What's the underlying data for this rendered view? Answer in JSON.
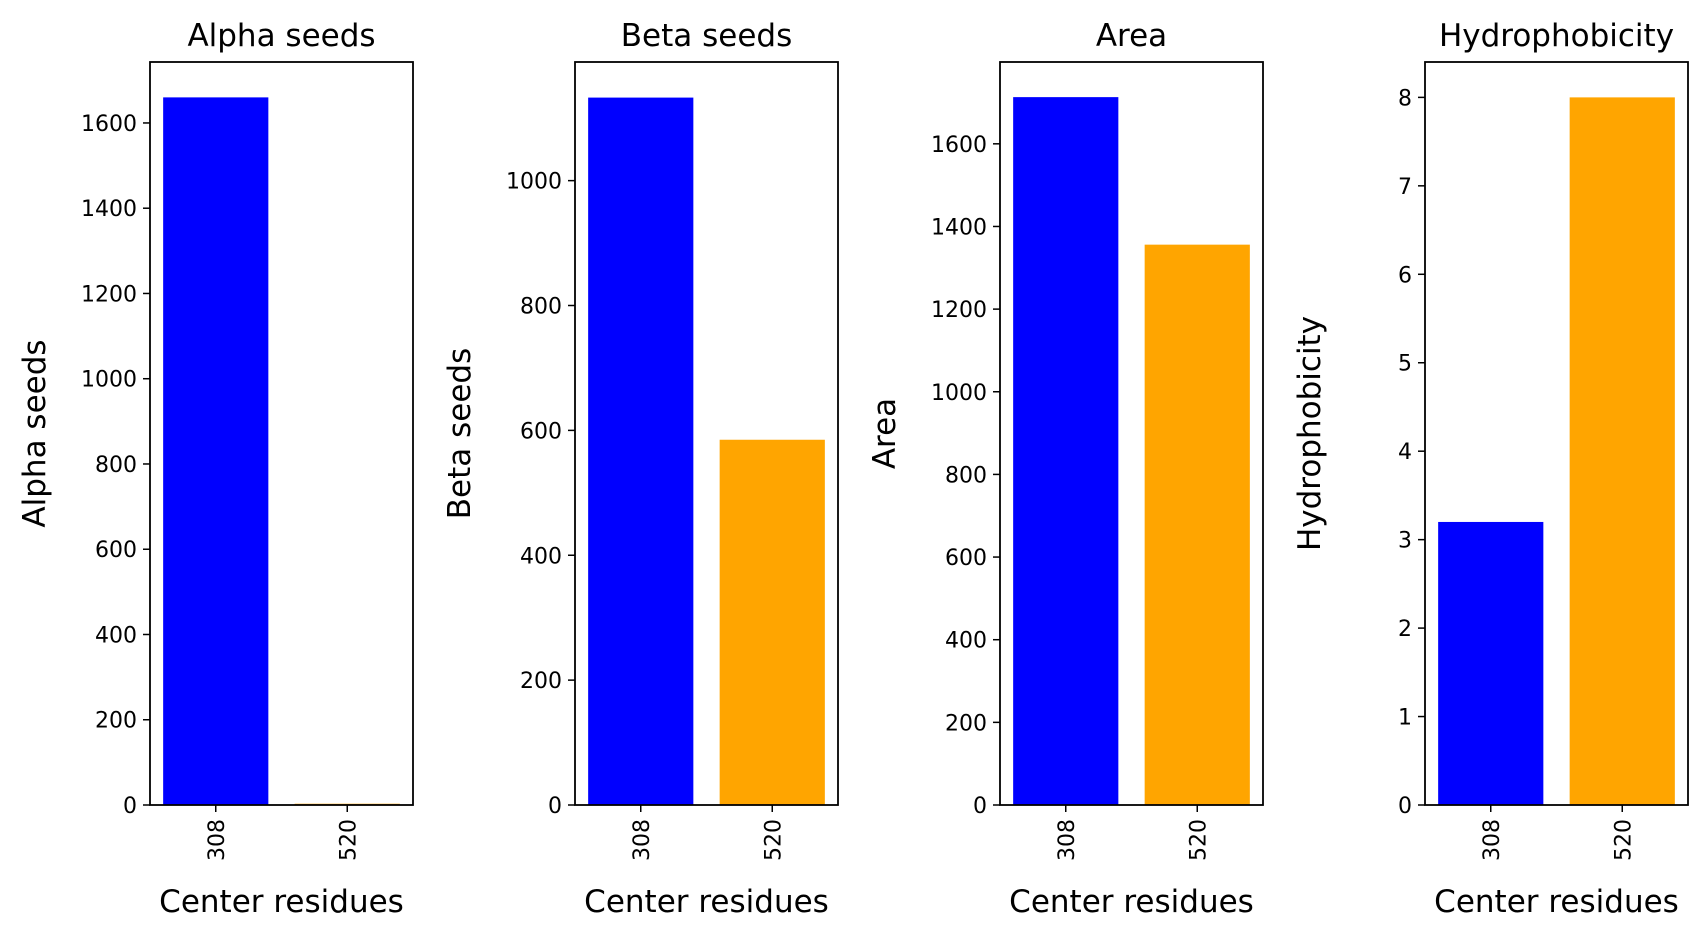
{
  "chart_data": [
    {
      "type": "bar",
      "title": "Alpha seeds",
      "xlabel": "Center residues",
      "ylabel": "Alpha seeds",
      "categories": [
        "308",
        "520"
      ],
      "values": [
        1660,
        3
      ],
      "colors": [
        "#0000ff",
        "#ffa500"
      ],
      "ylim": [
        0,
        1743
      ],
      "yticks": [
        0,
        200,
        400,
        600,
        800,
        1000,
        1200,
        1400,
        1600
      ],
      "grid": false
    },
    {
      "type": "bar",
      "title": "Beta seeds",
      "xlabel": "Center residues",
      "ylabel": "Beta seeds",
      "categories": [
        "308",
        "520"
      ],
      "values": [
        1133,
        585
      ],
      "colors": [
        "#0000ff",
        "#ffa500"
      ],
      "ylim": [
        0,
        1190
      ],
      "yticks": [
        0,
        200,
        400,
        600,
        800,
        1000
      ],
      "grid": false
    },
    {
      "type": "bar",
      "title": "Area",
      "xlabel": "Center residues",
      "ylabel": "Area",
      "categories": [
        "308",
        "520"
      ],
      "values": [
        1713,
        1356
      ],
      "colors": [
        "#0000ff",
        "#ffa500"
      ],
      "ylim": [
        0,
        1798
      ],
      "yticks": [
        0,
        200,
        400,
        600,
        800,
        1000,
        1200,
        1400,
        1600
      ],
      "grid": false
    },
    {
      "type": "bar",
      "title": "Hydrophobicity",
      "xlabel": "Center residues",
      "ylabel": "Hydrophobicity",
      "categories": [
        "308",
        "520"
      ],
      "values": [
        3.2,
        8.0
      ],
      "colors": [
        "#0000ff",
        "#ffa500"
      ],
      "ylim": [
        0,
        8.4
      ],
      "yticks": [
        0,
        1,
        2,
        3,
        4,
        5,
        6,
        7,
        8
      ],
      "grid": false
    }
  ]
}
